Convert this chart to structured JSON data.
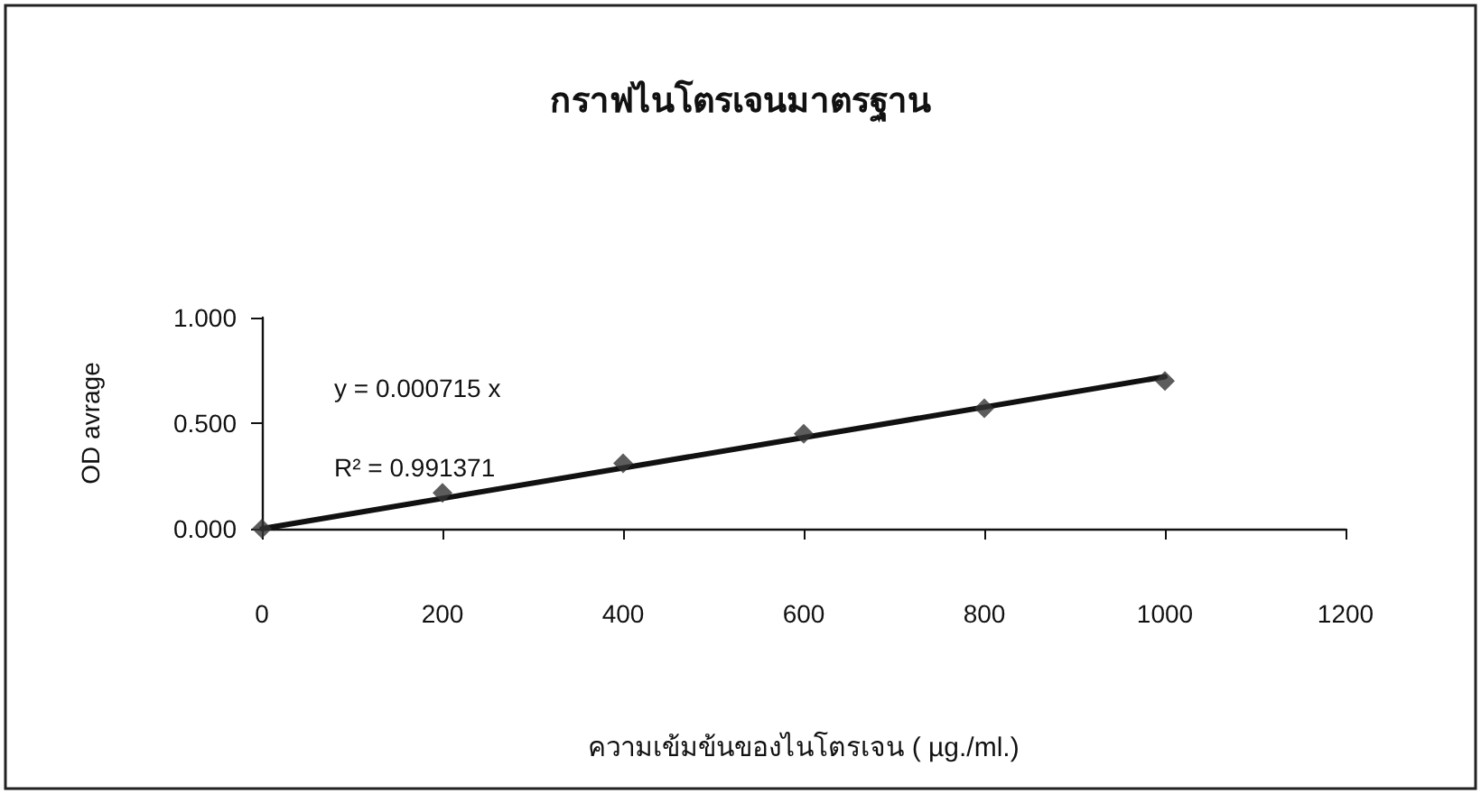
{
  "chart_data": {
    "type": "scatter",
    "title": "กราฟไนโตรเจนมาตรฐาน",
    "xlabel": "ความเข้มข้นของไนโตรเจน ( µg./ml.)",
    "ylabel": "OD avrage",
    "annotations": [
      "y = 0.000715 x",
      "R² = 0.991371"
    ],
    "series": [
      {
        "color": "#333333",
        "x": [
          0,
          200,
          400,
          600,
          800,
          1000
        ],
        "values": [
          0,
          0.17,
          0.31,
          0.45,
          0.57,
          0.7
        ],
        "marker": "diamond"
      },
      {
        "type": "line",
        "color": "#111111",
        "x": [
          0,
          1000
        ],
        "values": [
          0,
          0.72
        ],
        "marker": "none",
        "line_style": "solid"
      }
    ],
    "xlim": [
      0,
      1200
    ],
    "xticks": [
      0,
      200,
      400,
      600,
      800,
      1000,
      1200
    ],
    "ylim": [
      0,
      1
    ],
    "yticks": [
      {
        "value": 0,
        "label": "0.000"
      },
      {
        "value": 0.5,
        "label": "0.500"
      },
      {
        "value": 1,
        "label": "1.000"
      }
    ],
    "grid": false
  }
}
